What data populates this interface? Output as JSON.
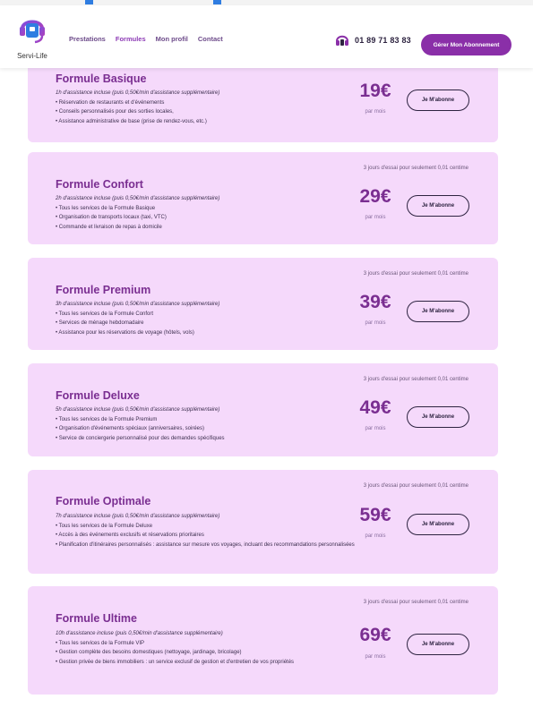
{
  "header": {
    "logo_text": "Servi-Life",
    "nav": [
      {
        "label": "Prestations"
      },
      {
        "label": "Formules"
      },
      {
        "label": "Mon profil"
      },
      {
        "label": "Contact"
      }
    ],
    "phone": "01 89 71 83 83",
    "subscribe_label": "Gérer Mon Abonnement"
  },
  "colors": {
    "accent": "#8a2fa8",
    "card_bg": "#f5d9fb",
    "title": "#7a2e91"
  },
  "formulas": [
    {
      "name": "Formule Basique",
      "trial": "",
      "note": "1h d'assistance incluse (puis 0,50€/min d'assistance supplémentaire)",
      "items": [
        "• Réservation de restaurants et d'événements",
        "• Conseils personnalisés pour des sorties locales,",
        "• Assistance administrative de base (prise de rendez-vous, etc.)"
      ],
      "price": "19€",
      "per": "par mois",
      "button": "Je M'abonne"
    },
    {
      "name": "Formule Confort",
      "trial": "3 jours d'essai pour seulement 0,01 centime",
      "note": "2h d'assistance incluse (puis 0,50€/min d'assistance supplémentaire)",
      "items": [
        "• Tous les services de la Formule Basique",
        "• Organisation de transports locaux (taxi, VTC)",
        "• Commande et livraison de repas à domicile"
      ],
      "price": "29€",
      "per": "par mois",
      "button": "Je M'abonne"
    },
    {
      "name": "Formule Premium",
      "trial": "3 jours d'essai pour seulement 0,01 centime",
      "note": "3h d'assistance incluse (puis 0,50€/min d'assistance supplémentaire)",
      "items": [
        "• Tous les services de la Formule Confort",
        "• Services de ménage hebdomadaire",
        "• Assistance pour les réservations de voyage (hôtels, vols)"
      ],
      "price": "39€",
      "per": "par mois",
      "button": "Je M'abonne"
    },
    {
      "name": "Formule Deluxe",
      "trial": "3 jours d'essai pour seulement 0,01 centime",
      "note": "5h d'assistance incluse (puis 0,50€/min d'assistance supplémentaire)",
      "items": [
        "• Tous les services de la Formule Premium",
        "• Organisation d'événements spéciaux (anniversaires, soirées)",
        "• Service de conciergerie personnalisé pour des demandes spécifiques"
      ],
      "price": "49€",
      "per": "par mois",
      "button": "Je M'abonne"
    },
    {
      "name": "Formule Optimale",
      "trial": "3 jours d'essai pour seulement 0,01 centime",
      "note": "7h d'assistance incluse (puis 0,50€/min d'assistance supplémentaire)",
      "items": [
        "• Tous les services de la Formule Deluxe",
        "• Accès à des événements exclusifs et réservations prioritaires",
        "• Planification d'itinéraires personnalisés : assistance sur mesure vos voyages, incluant des recommandations personnalisées"
      ],
      "price": "59€",
      "per": "par mois",
      "button": "Je M'abonne"
    },
    {
      "name": "Formule Ultime",
      "trial": "3 jours d'essai pour seulement 0,01 centime",
      "note": "10h d'assistance incluse (puis 0,50€/min d'assistance supplémentaire)",
      "items": [
        "• Tous les services de la Formule VIP",
        "• Gestion complète des besoins domestiques (nettoyage, jardinage, bricolage)",
        "• Gestion privée de biens immobiliers : un service exclusif de gestion et d'entretien de vos propriétés"
      ],
      "price": "69€",
      "per": "par mois",
      "button": "Je M'abonne"
    }
  ]
}
